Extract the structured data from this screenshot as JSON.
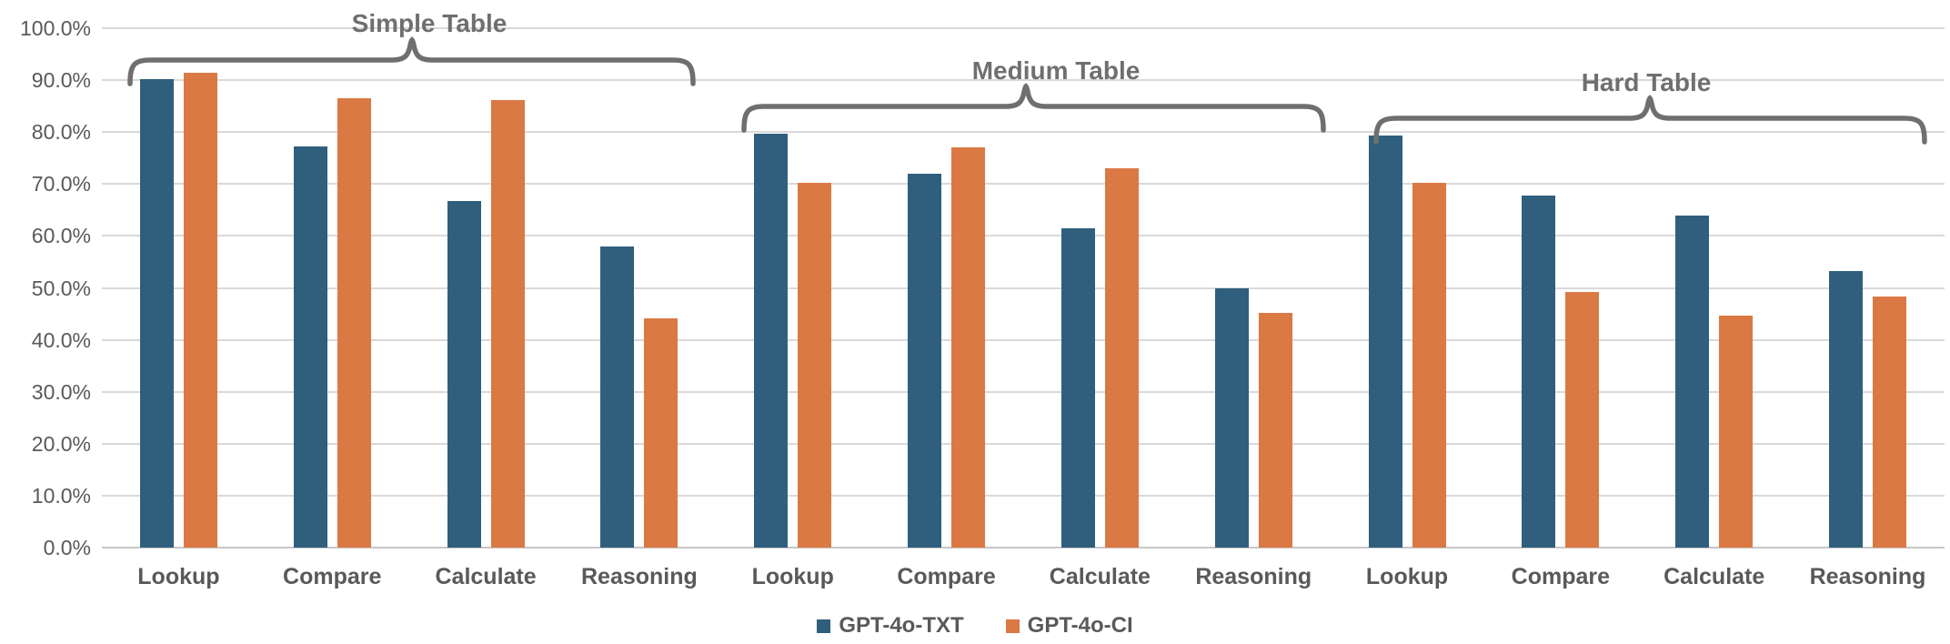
{
  "chart_data": {
    "type": "bar",
    "title": "",
    "xlabel": "",
    "ylabel": "",
    "ylim": [
      0,
      100
    ],
    "grid": true,
    "legend_position": "bottom",
    "y_ticks": [
      "100.0%",
      "90.0%",
      "80.0%",
      "70.0%",
      "60.0%",
      "50.0%",
      "40.0%",
      "30.0%",
      "20.0%",
      "10.0%",
      "0.0%"
    ],
    "categories": [
      "Lookup",
      "Compare",
      "Calculate",
      "Reasoning",
      "Lookup",
      "Compare",
      "Calculate",
      "Reasoning",
      "Lookup",
      "Compare",
      "Calculate",
      "Reasoning"
    ],
    "series": [
      {
        "name": "GPT-4o-TXT",
        "color": "#2F5F7D",
        "values": [
          90.2,
          77.3,
          66.8,
          58.0,
          79.6,
          72.0,
          61.4,
          50.0,
          79.4,
          67.8,
          64.0,
          53.3
        ]
      },
      {
        "name": "GPT-4o-CI",
        "color": "#DA7943",
        "values": [
          91.5,
          86.5,
          86.2,
          44.1,
          70.2,
          77.0,
          73.1,
          45.2,
          70.3,
          49.3,
          44.6,
          48.3
        ]
      }
    ],
    "annotations": [
      {
        "label": "Simple Table",
        "category_span": [
          0,
          3
        ]
      },
      {
        "label": "Medium Table",
        "category_span": [
          4,
          7
        ]
      },
      {
        "label": "Hard Table",
        "category_span": [
          8,
          11
        ]
      }
    ]
  },
  "style_colors": {
    "gridline": "#D9D9D9",
    "axis_line": "#C6C6C6",
    "tick_text": "#595959",
    "brace": "#6F6F6F"
  }
}
